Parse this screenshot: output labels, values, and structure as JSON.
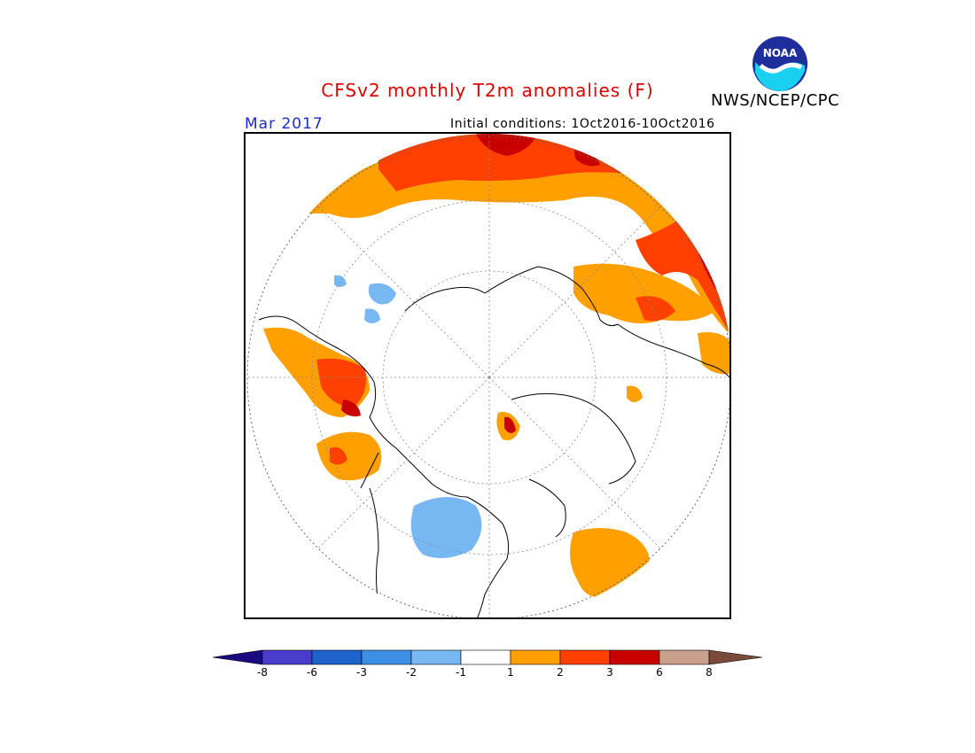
{
  "header": {
    "title": "CFSv2 monthly T2m anomalies (F)",
    "agency": "NWS/NCEP/CPC",
    "month": "Mar 2017",
    "initial_conditions": "Initial conditions: 1Oct2016-10Oct2016",
    "logo_text": "NOAA"
  },
  "map": {
    "projection": "north polar stereographic",
    "variable": "2m temperature anomaly",
    "units": "F"
  },
  "colorbar": {
    "ticks": [
      "-8",
      "-6",
      "-3",
      "-2",
      "-1",
      "1",
      "2",
      "3",
      "6",
      "8"
    ],
    "bins": [
      {
        "range": "< -8",
        "color": "#1a0a80"
      },
      {
        "range": "-8 to -6",
        "color": "#4a3ccc"
      },
      {
        "range": "-6 to -3",
        "color": "#1e62cc"
      },
      {
        "range": "-3 to -2",
        "color": "#3d8fe6"
      },
      {
        "range": "-2 to -1",
        "color": "#78b8f2"
      },
      {
        "range": "-1 to 1",
        "color": "#ffffff"
      },
      {
        "range": "1 to 2",
        "color": "#ffa000"
      },
      {
        "range": "2 to 3",
        "color": "#ff4000"
      },
      {
        "range": "3 to 6",
        "color": "#c80000"
      },
      {
        "range": "6 to 8",
        "color": "#c8a08c"
      },
      {
        "range": "> 8",
        "color": "#7a4b3a"
      }
    ]
  }
}
